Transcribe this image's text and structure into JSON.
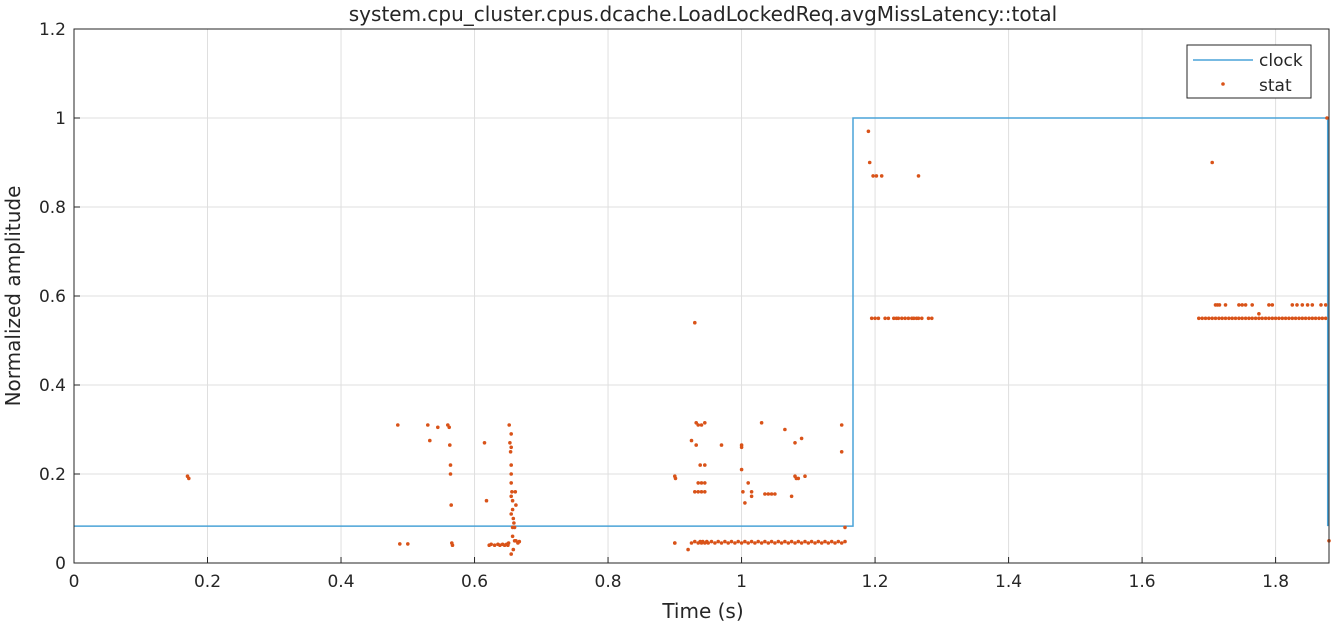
{
  "chart_data": {
    "type": "line",
    "title": "system.cpu_cluster.cpus.dcache.LoadLockedReq.avgMissLatency::total",
    "xlabel": "Time (s)",
    "ylabel": "Normalized amplitude",
    "xlim": [
      0,
      1.88
    ],
    "ylim": [
      0,
      1.2
    ],
    "xticks": [
      "0",
      "0.2",
      "0.4",
      "0.6",
      "0.8",
      "1",
      "1.2",
      "1.4",
      "1.6",
      "1.8"
    ],
    "yticks": [
      "0",
      "0.2",
      "0.4",
      "0.6",
      "0.8",
      "1",
      "1.2"
    ],
    "grid": true,
    "legend_position": "top-right",
    "colors": {
      "clock": "#4aa3d8",
      "stat": "#d95319"
    },
    "series": [
      {
        "name": "clock",
        "style": "step-line",
        "x": [
          0,
          1.167,
          1.167,
          1.878,
          1.878
        ],
        "y": [
          0.083,
          0.083,
          1.0,
          1.0,
          0.083
        ]
      },
      {
        "name": "stat",
        "style": "points",
        "x": [
          0.17,
          0.172,
          0.485,
          0.488,
          0.5,
          0.53,
          0.533,
          0.545,
          0.56,
          0.562,
          0.563,
          0.564,
          0.564,
          0.565,
          0.566,
          0.567,
          0.615,
          0.618,
          0.622,
          0.625,
          0.63,
          0.635,
          0.638,
          0.642,
          0.645,
          0.648,
          0.65,
          0.651,
          0.652,
          0.653,
          0.654,
          0.655,
          0.656,
          0.657,
          0.658,
          0.659,
          0.66,
          0.662,
          0.665,
          0.667,
          0.655,
          0.655,
          0.655,
          0.655,
          0.655,
          0.655,
          0.655,
          0.657,
          0.657,
          0.657,
          0.658,
          0.66,
          0.661,
          0.662,
          0.9,
          0.901,
          0.9,
          0.9,
          0.92,
          0.925,
          0.93,
          0.932,
          0.935,
          0.938,
          0.94,
          0.942,
          0.945,
          0.948,
          0.95,
          0.955,
          0.96,
          0.965,
          0.97,
          0.975,
          0.98,
          0.985,
          0.99,
          0.995,
          1.0,
          1.005,
          1.01,
          1.015,
          1.02,
          1.025,
          1.03,
          1.035,
          1.04,
          1.045,
          1.05,
          1.055,
          1.06,
          1.065,
          1.07,
          1.075,
          1.08,
          1.085,
          1.09,
          1.095,
          1.1,
          1.105,
          1.11,
          1.115,
          1.12,
          1.125,
          1.13,
          1.135,
          1.14,
          1.145,
          1.15,
          1.155,
          0.925,
          0.93,
          0.935,
          0.94,
          0.945,
          0.932,
          0.938,
          0.945,
          0.935,
          0.94,
          0.945,
          0.93,
          0.935,
          0.94,
          0.945,
          0.97,
          1.0,
          1.0,
          1.0,
          1.002,
          1.005,
          1.01,
          1.015,
          1.015,
          1.03,
          1.035,
          1.04,
          1.045,
          1.05,
          1.065,
          1.075,
          1.08,
          1.08,
          1.082,
          1.085,
          1.09,
          1.095,
          1.15,
          1.15,
          1.155,
          1.19,
          1.192,
          1.195,
          1.197,
          1.2,
          1.202,
          1.205,
          1.21,
          1.215,
          1.22,
          1.228,
          1.232,
          1.235,
          1.24,
          1.245,
          1.25,
          1.255,
          1.258,
          1.262,
          1.265,
          1.27,
          1.28,
          1.285,
          1.265,
          1.705,
          1.685,
          1.69,
          1.695,
          1.7,
          1.705,
          1.71,
          1.715,
          1.72,
          1.725,
          1.73,
          1.735,
          1.74,
          1.745,
          1.75,
          1.755,
          1.76,
          1.765,
          1.77,
          1.775,
          1.78,
          1.785,
          1.79,
          1.795,
          1.8,
          1.805,
          1.81,
          1.815,
          1.82,
          1.825,
          1.83,
          1.835,
          1.84,
          1.845,
          1.85,
          1.855,
          1.86,
          1.865,
          1.87,
          1.875,
          1.71,
          1.713,
          1.716,
          1.725,
          1.745,
          1.75,
          1.755,
          1.765,
          1.775,
          1.79,
          1.795,
          1.825,
          1.832,
          1.84,
          1.848,
          1.855,
          1.868,
          1.875,
          1.877,
          1.88
        ],
        "y": [
          0.195,
          0.19,
          0.31,
          0.043,
          0.043,
          0.31,
          0.275,
          0.305,
          0.31,
          0.305,
          0.265,
          0.22,
          0.2,
          0.13,
          0.045,
          0.04,
          0.27,
          0.14,
          0.04,
          0.042,
          0.04,
          0.042,
          0.04,
          0.042,
          0.04,
          0.042,
          0.04,
          0.045,
          0.31,
          0.27,
          0.25,
          0.2,
          0.16,
          0.12,
          0.1,
          0.09,
          0.08,
          0.05,
          0.045,
          0.048,
          0.29,
          0.26,
          0.22,
          0.18,
          0.15,
          0.11,
          0.02,
          0.06,
          0.14,
          0.08,
          0.03,
          0.05,
          0.16,
          0.13,
          0.195,
          0.19,
          0.045,
          0.045,
          0.03,
          0.045,
          0.048,
          0.315,
          0.045,
          0.048,
          0.045,
          0.048,
          0.045,
          0.048,
          0.045,
          0.048,
          0.045,
          0.048,
          0.045,
          0.048,
          0.045,
          0.048,
          0.045,
          0.048,
          0.045,
          0.048,
          0.045,
          0.048,
          0.045,
          0.048,
          0.045,
          0.048,
          0.045,
          0.048,
          0.045,
          0.048,
          0.045,
          0.048,
          0.045,
          0.048,
          0.045,
          0.048,
          0.045,
          0.048,
          0.045,
          0.048,
          0.045,
          0.048,
          0.045,
          0.048,
          0.045,
          0.048,
          0.045,
          0.048,
          0.045,
          0.048,
          0.275,
          0.54,
          0.31,
          0.31,
          0.315,
          0.265,
          0.22,
          0.22,
          0.18,
          0.18,
          0.18,
          0.16,
          0.16,
          0.16,
          0.16,
          0.265,
          0.265,
          0.26,
          0.21,
          0.16,
          0.135,
          0.18,
          0.16,
          0.15,
          0.315,
          0.155,
          0.155,
          0.155,
          0.155,
          0.3,
          0.15,
          0.27,
          0.195,
          0.19,
          0.19,
          0.28,
          0.195,
          0.31,
          0.25,
          0.08,
          0.97,
          0.9,
          0.55,
          0.87,
          0.55,
          0.87,
          0.55,
          0.87,
          0.55,
          0.55,
          0.55,
          0.55,
          0.55,
          0.55,
          0.55,
          0.55,
          0.55,
          0.55,
          0.55,
          0.55,
          0.55,
          0.55,
          0.55,
          0.87,
          0.9,
          0.55,
          0.55,
          0.55,
          0.55,
          0.55,
          0.55,
          0.55,
          0.55,
          0.55,
          0.55,
          0.55,
          0.55,
          0.55,
          0.55,
          0.55,
          0.55,
          0.55,
          0.55,
          0.55,
          0.55,
          0.55,
          0.55,
          0.55,
          0.55,
          0.55,
          0.55,
          0.55,
          0.55,
          0.55,
          0.55,
          0.55,
          0.55,
          0.55,
          0.55,
          0.55,
          0.55,
          0.55,
          0.55,
          0.55,
          0.58,
          0.58,
          0.58,
          0.58,
          0.58,
          0.58,
          0.58,
          0.58,
          0.56,
          0.58,
          0.58,
          0.58,
          0.58,
          0.58,
          0.58,
          0.58,
          0.58,
          0.58,
          1.0,
          0.05
        ]
      }
    ]
  }
}
